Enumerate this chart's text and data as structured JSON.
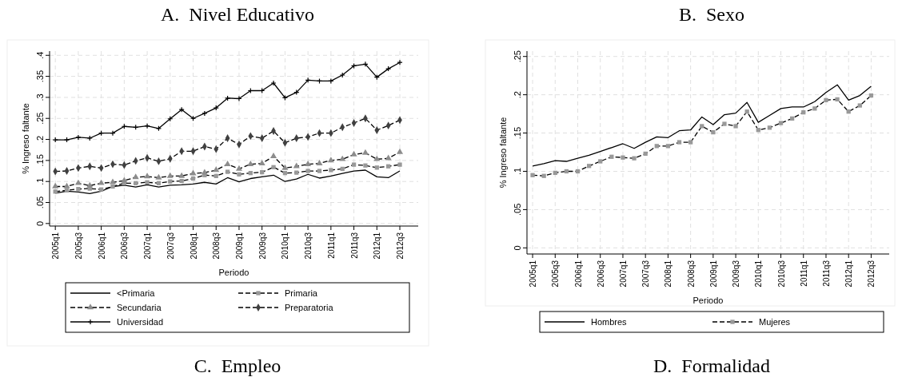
{
  "chart_data": [
    {
      "type": "line",
      "title": "A.  Nivel Educativo",
      "xlabel": "Periodo",
      "ylabel": "% Ingreso faltante",
      "categories": [
        "2005q1",
        null,
        "2005q3",
        null,
        "2006q1",
        null,
        "2006q3",
        null,
        "2007q1",
        null,
        "2007q3",
        null,
        "2008q1",
        null,
        "2008q3",
        null,
        "2009q1",
        null,
        "2009q3",
        null,
        "2010q1",
        null,
        "2010q3",
        null,
        "2011q1",
        null,
        "2011q3",
        null,
        "2012q1",
        null,
        "2012q3"
      ],
      "ylim": [
        -0.006,
        0.41
      ],
      "yticks": [
        {
          "value": 0,
          "label": "0"
        },
        {
          "value": 0.05,
          "label": ".05"
        },
        {
          "value": 0.1,
          "label": ".1"
        },
        {
          "value": 0.15,
          "label": ".15"
        },
        {
          "value": 0.2,
          "label": ".2"
        },
        {
          "value": 0.25,
          "label": ".25"
        },
        {
          "value": 0.3,
          "label": ".3"
        },
        {
          "value": 0.35,
          "label": ".35"
        },
        {
          "value": 0.4,
          "label": ".4"
        }
      ],
      "grid": true,
      "legend": "bottom",
      "series": [
        {
          "name": "<Primaria",
          "color": "#000000",
          "line_style": "solid",
          "marker": "none",
          "values": [
            0.072,
            0.077,
            0.075,
            0.071,
            0.077,
            0.088,
            0.091,
            0.087,
            0.092,
            0.087,
            0.091,
            0.092,
            0.094,
            0.098,
            0.094,
            0.109,
            0.099,
            0.107,
            0.111,
            0.115,
            0.1,
            0.106,
            0.117,
            0.108,
            0.113,
            0.119,
            0.125,
            0.127,
            0.111,
            0.109,
            0.125
          ]
        },
        {
          "name": "Primaria",
          "color": "#999999",
          "line_style": "dashed",
          "marker": "square",
          "values": [
            0.076,
            0.079,
            0.082,
            0.083,
            0.081,
            0.088,
            0.096,
            0.096,
            0.098,
            0.096,
            0.1,
            0.101,
            0.107,
            0.115,
            0.113,
            0.123,
            0.117,
            0.12,
            0.122,
            0.134,
            0.12,
            0.121,
            0.125,
            0.125,
            0.127,
            0.13,
            0.14,
            0.138,
            0.133,
            0.136,
            0.14
          ]
        },
        {
          "name": "Secundaria",
          "color": "#8c8c8c",
          "line_style": "dashed",
          "marker": "triangle",
          "values": [
            0.088,
            0.088,
            0.096,
            0.09,
            0.096,
            0.098,
            0.102,
            0.11,
            0.112,
            0.109,
            0.113,
            0.113,
            0.119,
            0.121,
            0.127,
            0.141,
            0.13,
            0.141,
            0.143,
            0.16,
            0.132,
            0.136,
            0.141,
            0.143,
            0.15,
            0.153,
            0.164,
            0.168,
            0.153,
            0.155,
            0.17
          ]
        },
        {
          "name": "Preparatoria",
          "color": "#404040",
          "line_style": "dashed",
          "marker": "diamond",
          "values": [
            0.124,
            0.125,
            0.132,
            0.136,
            0.132,
            0.141,
            0.139,
            0.149,
            0.156,
            0.148,
            0.154,
            0.172,
            0.172,
            0.183,
            0.177,
            0.203,
            0.188,
            0.208,
            0.203,
            0.22,
            0.192,
            0.203,
            0.206,
            0.215,
            0.215,
            0.229,
            0.239,
            0.25,
            0.222,
            0.233,
            0.246
          ]
        },
        {
          "name": "Universidad",
          "color": "#000000",
          "line_style": "solid",
          "marker": "cross",
          "values": [
            0.199,
            0.199,
            0.205,
            0.203,
            0.215,
            0.215,
            0.231,
            0.229,
            0.232,
            0.226,
            0.249,
            0.271,
            0.25,
            0.262,
            0.275,
            0.298,
            0.297,
            0.316,
            0.316,
            0.334,
            0.299,
            0.312,
            0.341,
            0.339,
            0.339,
            0.353,
            0.375,
            0.379,
            0.348,
            0.368,
            0.383
          ]
        }
      ],
      "annotations": [
        "C.  Empleo"
      ]
    },
    {
      "type": "line",
      "title": "B.  Sexo",
      "xlabel": "Periodo",
      "ylabel": "% Ingreso faltante",
      "categories": [
        "2005q1",
        null,
        "2005q3",
        null,
        "2006q1",
        null,
        "2006q3",
        null,
        "2007q1",
        null,
        "2007q3",
        null,
        "2008q1",
        null,
        "2008q3",
        null,
        "2009q1",
        null,
        "2009q3",
        null,
        "2010q1",
        null,
        "2010q3",
        null,
        "2011q1",
        null,
        "2011q3",
        null,
        "2012q1",
        null,
        "2012q3"
      ],
      "ylim": [
        -0.008,
        0.257
      ],
      "yticks": [
        {
          "value": 0,
          "label": "0"
        },
        {
          "value": 0.05,
          "label": ".05"
        },
        {
          "value": 0.1,
          "label": ".1"
        },
        {
          "value": 0.15,
          "label": ".15"
        },
        {
          "value": 0.2,
          "label": ".2"
        },
        {
          "value": 0.25,
          "label": ".25"
        }
      ],
      "grid": true,
      "legend": "bottom",
      "series": [
        {
          "name": "Hombres",
          "color": "#000000",
          "line_style": "solid",
          "marker": "none",
          "values": [
            0.107,
            0.11,
            0.114,
            0.113,
            0.117,
            0.121,
            0.126,
            0.131,
            0.136,
            0.13,
            0.138,
            0.145,
            0.144,
            0.153,
            0.154,
            0.171,
            0.161,
            0.174,
            0.176,
            0.19,
            0.164,
            0.173,
            0.182,
            0.184,
            0.184,
            0.191,
            0.203,
            0.213,
            0.193,
            0.199,
            0.211
          ]
        },
        {
          "name": "Mujeres",
          "color": "#999999",
          "line_style": "dashed",
          "marker": "square",
          "values": [
            0.095,
            0.094,
            0.098,
            0.1,
            0.1,
            0.107,
            0.113,
            0.119,
            0.118,
            0.117,
            0.123,
            0.133,
            0.133,
            0.138,
            0.138,
            0.159,
            0.151,
            0.162,
            0.159,
            0.178,
            0.154,
            0.157,
            0.163,
            0.169,
            0.177,
            0.182,
            0.193,
            0.194,
            0.178,
            0.186,
            0.199
          ]
        }
      ],
      "annotations": [
        "D.  Formalidad"
      ]
    }
  ]
}
